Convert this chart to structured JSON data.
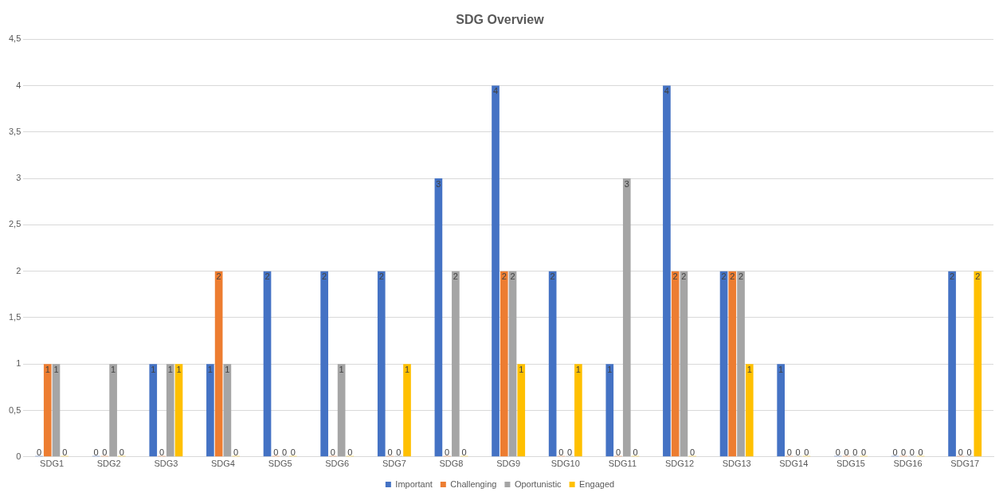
{
  "chart_data": {
    "type": "bar",
    "title": "SDG Overview",
    "categories": [
      "SDG1",
      "SDG2",
      "SDG3",
      "SDG4",
      "SDG5",
      "SDG6",
      "SDG7",
      "SDG8",
      "SDG9",
      "SDG10",
      "SDG11",
      "SDG12",
      "SDG13",
      "SDG14",
      "SDG15",
      "SDG16",
      "SDG17"
    ],
    "series": [
      {
        "name": "Important",
        "color": "#4472c4",
        "values": [
          0,
          0,
          1,
          1,
          2,
          2,
          2,
          3,
          4,
          2,
          1,
          4,
          2,
          1,
          0,
          0,
          2
        ]
      },
      {
        "name": "Challenging",
        "color": "#ed7d31",
        "values": [
          1,
          0,
          0,
          2,
          0,
          0,
          0,
          0,
          2,
          0,
          0,
          2,
          2,
          0,
          0,
          0,
          0
        ]
      },
      {
        "name": "Oportunistic",
        "color": "#a5a5a5",
        "values": [
          1,
          1,
          1,
          1,
          0,
          1,
          0,
          2,
          2,
          0,
          3,
          2,
          2,
          0,
          0,
          0,
          0
        ]
      },
      {
        "name": "Engaged",
        "color": "#ffc000",
        "values": [
          0,
          0,
          1,
          0,
          0,
          0,
          1,
          0,
          1,
          1,
          0,
          0,
          1,
          0,
          0,
          0,
          2
        ]
      }
    ],
    "ylim": [
      0,
      4.5
    ],
    "yticks": [
      0,
      {
        "value": 0.5,
        "label": "0,5"
      },
      1,
      {
        "value": 1.5,
        "label": "1,5"
      },
      2,
      {
        "value": 2.5,
        "label": "2,5"
      },
      3,
      {
        "value": 3.5,
        "label": "3,5"
      },
      4,
      {
        "value": 4.5,
        "label": "4,5"
      }
    ],
    "grid": "y",
    "legend": "bottom",
    "data_labels": true
  }
}
